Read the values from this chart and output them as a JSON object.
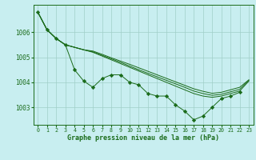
{
  "title": "Graphe pression niveau de la mer (hPa)",
  "xlabel_ticks": [
    0,
    1,
    2,
    3,
    4,
    5,
    6,
    7,
    8,
    9,
    10,
    11,
    12,
    13,
    14,
    15,
    16,
    17,
    18,
    19,
    20,
    21,
    22,
    23
  ],
  "ylim": [
    1002.3,
    1007.1
  ],
  "yticks": [
    1003,
    1004,
    1005,
    1006
  ],
  "background_color": "#c8eef0",
  "grid_color": "#a0cfc8",
  "line_color": "#1a6b1a",
  "marker_color": "#1a6b1a",
  "main_curve": [
    1006.8,
    1006.1,
    1005.75,
    1005.5,
    1004.5,
    1004.05,
    1003.8,
    1004.15,
    1004.3,
    1004.3,
    1004.0,
    1003.9,
    1003.55,
    1003.45,
    1003.45,
    1003.1,
    1002.85,
    1002.5,
    1002.65,
    1003.0,
    1003.35,
    1003.45,
    1003.6,
    null
  ],
  "smooth_curves": [
    [
      1006.8,
      1006.1,
      1005.75,
      1005.5,
      1005.4,
      1005.3,
      1005.2,
      1005.05,
      1004.9,
      1004.75,
      1004.6,
      1004.45,
      1004.3,
      1004.15,
      1004.0,
      1003.85,
      1003.7,
      1003.55,
      1003.45,
      1003.4,
      1003.45,
      1003.55,
      1003.65,
      1004.05
    ],
    [
      1006.8,
      1006.1,
      1005.75,
      1005.5,
      1005.4,
      1005.3,
      1005.22,
      1005.08,
      1004.94,
      1004.8,
      1004.65,
      1004.5,
      1004.36,
      1004.22,
      1004.08,
      1003.94,
      1003.8,
      1003.65,
      1003.55,
      1003.48,
      1003.52,
      1003.62,
      1003.72,
      1004.08
    ],
    [
      1006.8,
      1006.1,
      1005.75,
      1005.5,
      1005.4,
      1005.3,
      1005.25,
      1005.12,
      1004.98,
      1004.85,
      1004.72,
      1004.58,
      1004.44,
      1004.3,
      1004.16,
      1004.02,
      1003.88,
      1003.74,
      1003.64,
      1003.56,
      1003.6,
      1003.7,
      1003.8,
      1004.1
    ]
  ],
  "figsize": [
    3.2,
    2.0
  ],
  "dpi": 100
}
